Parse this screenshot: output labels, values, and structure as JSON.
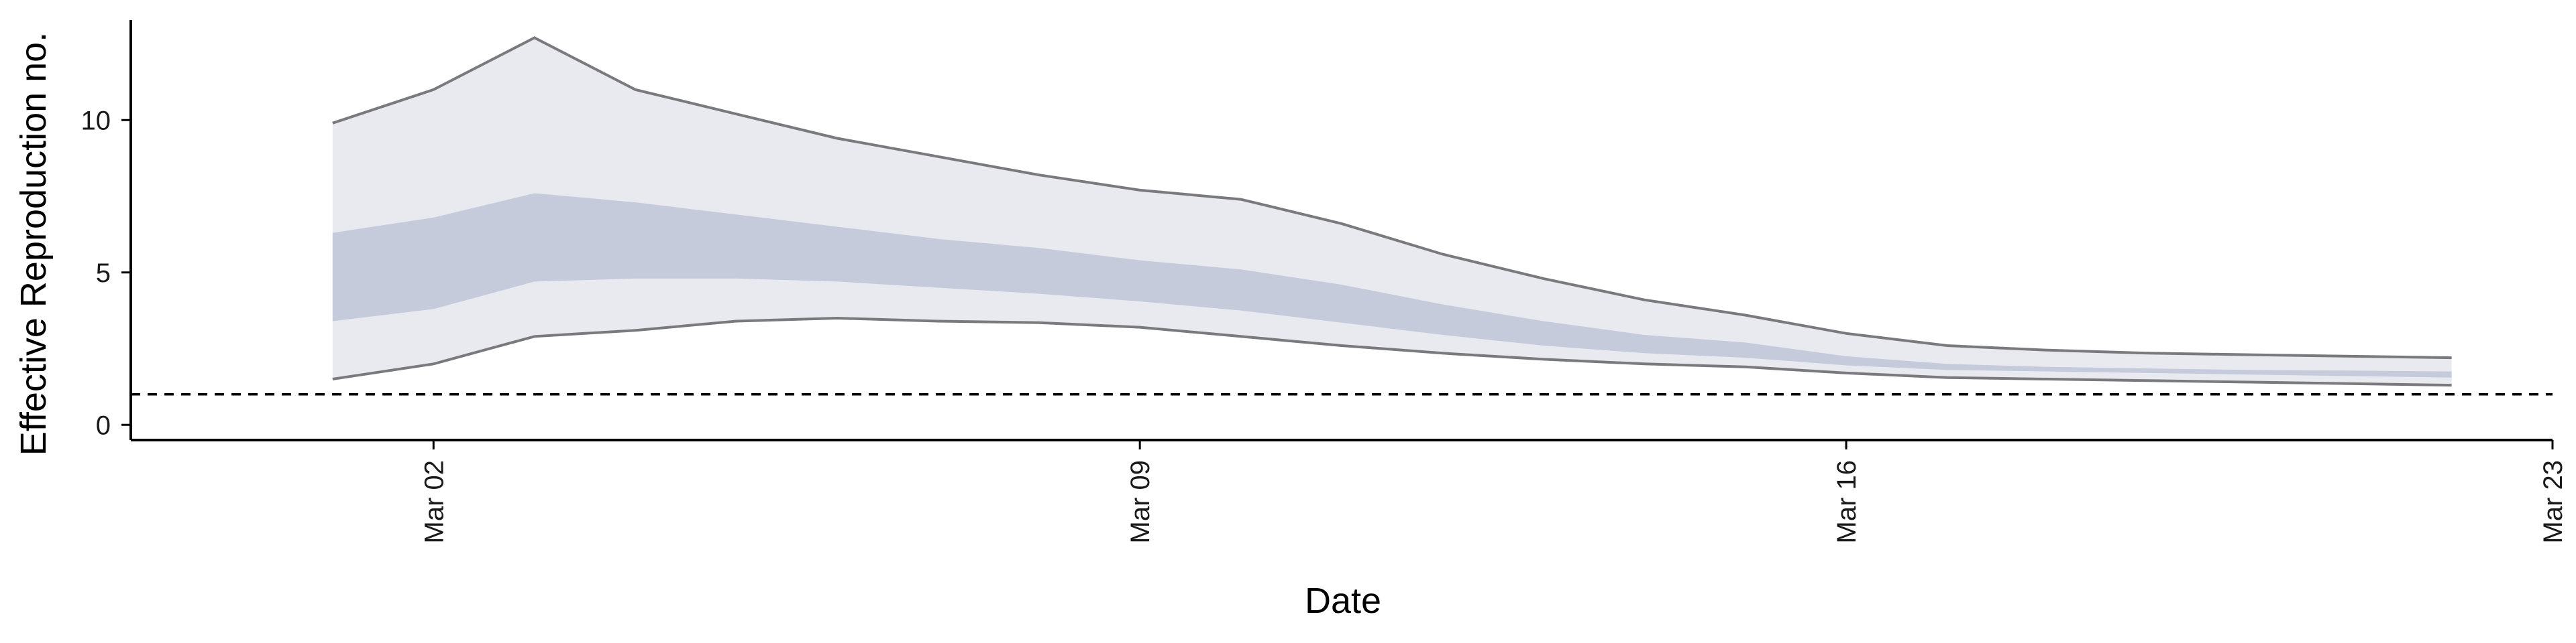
{
  "chart_data": {
    "type": "area",
    "title": "",
    "xlabel": "Date",
    "ylabel": "Effective Reproduction no.",
    "ylim": [
      -0.5,
      13.5
    ],
    "xlim": [
      "2020-02-28",
      "2020-03-23"
    ],
    "x_ticks": [
      "2020-03-02",
      "2020-03-09",
      "2020-03-16",
      "2020-03-23"
    ],
    "x_tick_labels": [
      "Mar 02",
      "Mar 09",
      "Mar 16",
      "Mar 23"
    ],
    "y_ticks": [
      0,
      5,
      10
    ],
    "y_tick_labels": [
      "0",
      "5",
      "10"
    ],
    "reference_line": 1,
    "grid": false,
    "x": [
      "2020-03-01",
      "2020-03-02",
      "2020-03-03",
      "2020-03-04",
      "2020-03-05",
      "2020-03-06",
      "2020-03-07",
      "2020-03-08",
      "2020-03-09",
      "2020-03-10",
      "2020-03-11",
      "2020-03-12",
      "2020-03-13",
      "2020-03-14",
      "2020-03-15",
      "2020-03-16",
      "2020-03-17",
      "2020-03-18",
      "2020-03-19",
      "2020-03-20",
      "2020-03-21",
      "2020-03-22"
    ],
    "series": [
      {
        "band": "outer",
        "upper": [
          9.9,
          11.0,
          12.7,
          11.0,
          10.2,
          9.4,
          8.8,
          8.2,
          7.7,
          7.4,
          6.6,
          5.6,
          4.8,
          4.1,
          3.6,
          3.0,
          2.6,
          2.45,
          2.35,
          2.3,
          2.25,
          2.2
        ],
        "lower": [
          1.5,
          2.0,
          2.9,
          3.1,
          3.4,
          3.5,
          3.4,
          3.35,
          3.2,
          2.9,
          2.6,
          2.35,
          2.15,
          2.0,
          1.9,
          1.7,
          1.55,
          1.5,
          1.45,
          1.4,
          1.35,
          1.3
        ]
      },
      {
        "band": "inner",
        "upper": [
          6.3,
          6.8,
          7.6,
          7.3,
          6.9,
          6.5,
          6.1,
          5.8,
          5.4,
          5.1,
          4.6,
          3.95,
          3.4,
          2.95,
          2.7,
          2.25,
          2.0,
          1.9,
          1.85,
          1.8,
          1.78,
          1.75
        ],
        "lower": [
          3.4,
          3.8,
          4.7,
          4.8,
          4.8,
          4.7,
          4.5,
          4.3,
          4.05,
          3.75,
          3.35,
          2.95,
          2.6,
          2.35,
          2.2,
          1.95,
          1.8,
          1.75,
          1.7,
          1.65,
          1.6,
          1.55
        ]
      }
    ],
    "colors": {
      "outer_band": "#e9eaf0",
      "inner_band": "#c6cbdb",
      "outer_line": "#7a7a7e",
      "axis": "#000000",
      "reference": "#000000"
    }
  }
}
